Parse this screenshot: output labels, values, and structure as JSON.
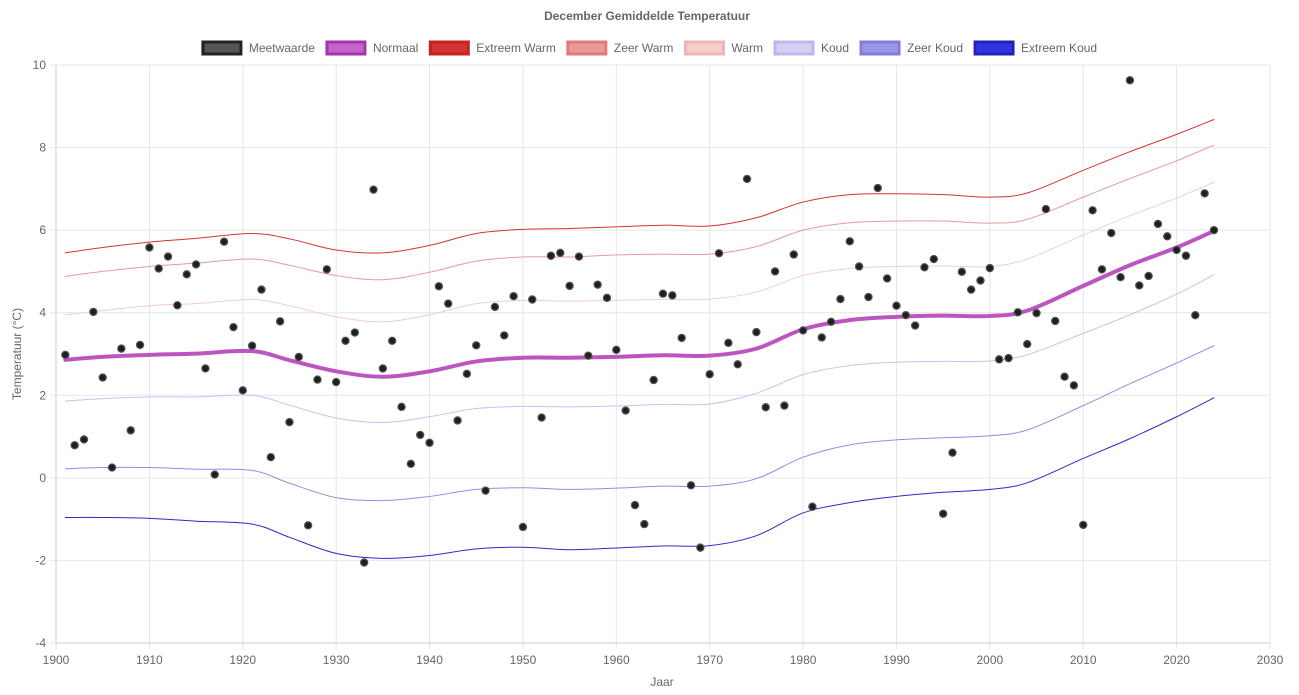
{
  "chart_data": {
    "type": "line",
    "title": "December Gemiddelde Temperatuur",
    "xlabel": "Jaar",
    "ylabel": "Temperatuur (°C)",
    "xlim": [
      1900,
      2030
    ],
    "ylim": [
      -4,
      10
    ],
    "x_ticks": [
      1900,
      1910,
      1920,
      1930,
      1940,
      1950,
      1960,
      1970,
      1980,
      1990,
      2000,
      2010,
      2020,
      2030
    ],
    "y_ticks": [
      -4,
      -2,
      0,
      2,
      4,
      6,
      8,
      10
    ],
    "grid": true,
    "legend_position": "top",
    "legend": [
      {
        "label": "Meetwaarde",
        "fill": "#555555",
        "stroke": "#222222"
      },
      {
        "label": "Normaal",
        "fill": "#c466c8",
        "stroke": "#a633ac"
      },
      {
        "label": "Extreem Warm",
        "fill": "#d63333",
        "stroke": "#c42222"
      },
      {
        "label": "Zeer Warm",
        "fill": "#e89a9a",
        "stroke": "#dd7a7a"
      },
      {
        "label": "Warm",
        "fill": "#f5cccc",
        "stroke": "#efb5b5"
      },
      {
        "label": "Koud",
        "fill": "#d4d0f4",
        "stroke": "#bcb8ee"
      },
      {
        "label": "Zeer Koud",
        "fill": "#9a98e8",
        "stroke": "#7f7cdd"
      },
      {
        "label": "Extreem Koud",
        "fill": "#3333dd",
        "stroke": "#2222bb"
      }
    ],
    "measured": {
      "name": "Meetwaarde",
      "color": "#222222",
      "x": [
        1901,
        1902,
        1903,
        1904,
        1905,
        1906,
        1907,
        1908,
        1909,
        1910,
        1911,
        1912,
        1913,
        1914,
        1915,
        1916,
        1917,
        1918,
        1919,
        1920,
        1921,
        1922,
        1923,
        1924,
        1925,
        1926,
        1927,
        1928,
        1929,
        1930,
        1931,
        1932,
        1933,
        1934,
        1935,
        1936,
        1937,
        1938,
        1939,
        1940,
        1941,
        1942,
        1943,
        1944,
        1945,
        1946,
        1947,
        1948,
        1949,
        1950,
        1951,
        1952,
        1953,
        1954,
        1955,
        1956,
        1957,
        1958,
        1959,
        1960,
        1961,
        1962,
        1963,
        1964,
        1965,
        1966,
        1967,
        1968,
        1969,
        1970,
        1971,
        1972,
        1973,
        1974,
        1975,
        1976,
        1977,
        1978,
        1979,
        1980,
        1981,
        1982,
        1983,
        1984,
        1985,
        1986,
        1987,
        1988,
        1989,
        1990,
        1991,
        1992,
        1993,
        1994,
        1995,
        1996,
        1997,
        1998,
        1999,
        2000,
        2001,
        2002,
        2003,
        2004,
        2005,
        2006,
        2007,
        2008,
        2009,
        2010,
        2011,
        2012,
        2013,
        2014,
        2015,
        2016,
        2017,
        2018,
        2019,
        2020,
        2021,
        2022,
        2023,
        2024
      ],
      "y": [
        2.98,
        0.79,
        0.93,
        4.02,
        2.43,
        0.25,
        3.13,
        1.15,
        3.22,
        5.58,
        5.07,
        5.36,
        4.18,
        4.93,
        5.17,
        2.65,
        0.08,
        5.72,
        3.65,
        2.12,
        3.2,
        4.56,
        0.5,
        3.79,
        1.35,
        2.93,
        -1.15,
        2.38,
        5.05,
        2.32,
        3.32,
        3.52,
        -2.05,
        6.98,
        2.65,
        3.32,
        1.72,
        0.34,
        1.04,
        0.85,
        4.64,
        4.22,
        1.39,
        2.52,
        3.21,
        -0.31,
        4.14,
        3.45,
        4.4,
        -1.19,
        4.32,
        1.46,
        5.38,
        5.45,
        4.65,
        5.36,
        2.96,
        4.68,
        4.36,
        3.1,
        1.63,
        -0.66,
        -1.12,
        2.37,
        4.46,
        4.42,
        3.39,
        -0.18,
        -1.69,
        2.51,
        5.44,
        3.27,
        2.75,
        7.24,
        3.53,
        1.71,
        5.0,
        1.75,
        5.41,
        3.57,
        -0.7,
        3.4,
        3.78,
        4.33,
        5.73,
        5.12,
        4.38,
        7.02,
        4.83,
        4.17,
        3.94,
        3.69,
        5.1,
        5.3,
        -0.87,
        0.61,
        4.99,
        4.56,
        4.78,
        5.08,
        2.87,
        2.9,
        4.01,
        3.24,
        3.99,
        6.51,
        3.8,
        2.45,
        2.24,
        -1.14,
        6.48,
        5.05,
        5.93,
        4.86,
        9.63,
        4.66,
        4.89,
        6.15,
        5.85,
        5.52,
        5.38,
        3.94,
        6.89,
        6.0
      ]
    },
    "bands": {
      "x": [
        1901,
        1905,
        1910,
        1915,
        1921,
        1925,
        1930,
        1935,
        1940,
        1945,
        1950,
        1955,
        1960,
        1965,
        1970,
        1975,
        1980,
        1985,
        1990,
        1995,
        2000,
        2004,
        2010,
        2015,
        2020,
        2024
      ],
      "series": [
        {
          "name": "Extreem Warm",
          "color": "#d63333",
          "width": 1,
          "values": [
            5.45,
            5.58,
            5.71,
            5.8,
            5.92,
            5.79,
            5.52,
            5.45,
            5.63,
            5.92,
            6.02,
            6.04,
            6.08,
            6.12,
            6.1,
            6.3,
            6.68,
            6.86,
            6.88,
            6.86,
            6.8,
            6.9,
            7.45,
            7.9,
            8.32,
            8.68
          ]
        },
        {
          "name": "Zeer Warm",
          "color": "#e89a9a",
          "width": 1,
          "values": [
            4.88,
            5.0,
            5.12,
            5.2,
            5.3,
            5.15,
            4.9,
            4.8,
            4.98,
            5.25,
            5.35,
            5.35,
            5.4,
            5.42,
            5.42,
            5.6,
            6.0,
            6.18,
            6.22,
            6.22,
            6.17,
            6.26,
            6.8,
            7.25,
            7.68,
            8.06
          ]
        },
        {
          "name": "Warm",
          "color": "#f5cccc",
          "width": 1,
          "values": [
            3.95,
            4.05,
            4.17,
            4.22,
            4.32,
            4.17,
            3.9,
            3.78,
            3.95,
            4.22,
            4.3,
            4.28,
            4.3,
            4.32,
            4.33,
            4.5,
            4.9,
            5.07,
            5.12,
            5.13,
            5.12,
            5.3,
            5.88,
            6.35,
            6.78,
            7.16
          ]
        },
        {
          "name": "Normaal",
          "color": "#bb55c0",
          "width": 4,
          "values": [
            2.86,
            2.93,
            2.98,
            3.01,
            3.07,
            2.85,
            2.58,
            2.45,
            2.58,
            2.82,
            2.91,
            2.91,
            2.93,
            2.97,
            2.96,
            3.13,
            3.6,
            3.82,
            3.9,
            3.93,
            3.92,
            4.05,
            4.65,
            5.15,
            5.58,
            5.98
          ]
        },
        {
          "name": "Koud",
          "color": "#c5c1f0",
          "width": 1,
          "values": [
            1.86,
            1.92,
            1.96,
            1.96,
            2.0,
            1.76,
            1.45,
            1.34,
            1.48,
            1.68,
            1.73,
            1.72,
            1.74,
            1.78,
            1.79,
            2.05,
            2.5,
            2.72,
            2.8,
            2.82,
            2.83,
            2.98,
            3.5,
            3.95,
            4.45,
            4.92
          ]
        },
        {
          "name": "Zeer Koud",
          "color": "#8f8de0",
          "width": 1,
          "values": [
            0.22,
            0.25,
            0.25,
            0.21,
            0.18,
            -0.13,
            -0.48,
            -0.55,
            -0.45,
            -0.28,
            -0.24,
            -0.28,
            -0.25,
            -0.2,
            -0.2,
            -0.02,
            0.5,
            0.8,
            0.92,
            0.97,
            1.02,
            1.16,
            1.75,
            2.28,
            2.78,
            3.2
          ]
        },
        {
          "name": "Extreem Koud",
          "color": "#2b2bc4",
          "width": 1,
          "values": [
            -0.96,
            -0.96,
            -0.98,
            -1.05,
            -1.12,
            -1.44,
            -1.83,
            -1.95,
            -1.88,
            -1.72,
            -1.68,
            -1.74,
            -1.7,
            -1.65,
            -1.64,
            -1.4,
            -0.85,
            -0.6,
            -0.45,
            -0.35,
            -0.28,
            -0.12,
            0.47,
            0.95,
            1.48,
            1.94
          ]
        }
      ]
    }
  }
}
